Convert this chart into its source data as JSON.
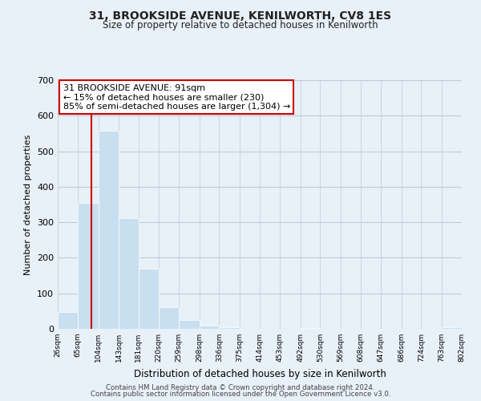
{
  "title": "31, BROOKSIDE AVENUE, KENILWORTH, CV8 1ES",
  "subtitle": "Size of property relative to detached houses in Kenilworth",
  "xlabel": "Distribution of detached houses by size in Kenilworth",
  "ylabel": "Number of detached properties",
  "bin_edges": [
    26,
    65,
    104,
    143,
    181,
    220,
    259,
    298,
    336,
    375,
    414,
    453,
    492,
    530,
    569,
    608,
    647,
    686,
    724,
    763,
    802
  ],
  "bin_labels": [
    "26sqm",
    "65sqm",
    "104sqm",
    "143sqm",
    "181sqm",
    "220sqm",
    "259sqm",
    "298sqm",
    "336sqm",
    "375sqm",
    "414sqm",
    "453sqm",
    "492sqm",
    "530sqm",
    "569sqm",
    "608sqm",
    "647sqm",
    "686sqm",
    "724sqm",
    "763sqm",
    "802sqm"
  ],
  "counts": [
    47,
    355,
    557,
    312,
    170,
    60,
    25,
    10,
    5,
    0,
    0,
    0,
    3,
    0,
    0,
    0,
    0,
    0,
    0,
    5
  ],
  "bar_color": "#c8dff0",
  "bar_edge_color": "#ffffff",
  "property_line_x": 91,
  "property_line_color": "#cc0000",
  "annotation_line1": "31 BROOKSIDE AVENUE: 91sqm",
  "annotation_line2": "← 15% of detached houses are smaller (230)",
  "annotation_line3": "85% of semi-detached houses are larger (1,304) →",
  "annotation_box_color": "#ffffff",
  "annotation_box_edge_color": "#cc0000",
  "ylim": [
    0,
    700
  ],
  "yticks": [
    0,
    100,
    200,
    300,
    400,
    500,
    600,
    700
  ],
  "footer_line1": "Contains HM Land Registry data © Crown copyright and database right 2024.",
  "footer_line2": "Contains public sector information licensed under the Open Government Licence v3.0.",
  "background_color": "#e8f0f8",
  "plot_bg_color": "#e8f0f8",
  "grid_color": "#c0ccd8"
}
